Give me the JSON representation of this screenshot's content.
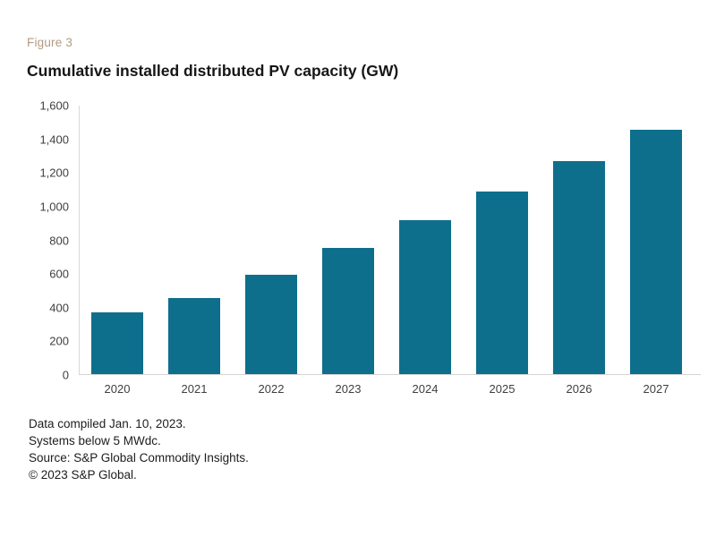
{
  "figure_label": "Figure 3",
  "chart_data": {
    "type": "bar",
    "title": "Cumulative installed distributed PV capacity (GW)",
    "categories": [
      "2020",
      "2021",
      "2022",
      "2023",
      "2024",
      "2025",
      "2026",
      "2027"
    ],
    "values": [
      365,
      450,
      590,
      750,
      915,
      1085,
      1265,
      1450
    ],
    "xlabel": "",
    "ylabel": "",
    "ylim": [
      0,
      1600
    ],
    "ytick_step": 200,
    "grid": false,
    "legend": false,
    "bar_color": "#0e6f8c",
    "units": "GW"
  },
  "colors": {
    "figure_label_text": "#b29b84",
    "title_text": "#161616",
    "axis_tick_text": "#3f3f3f",
    "axis_line": "#d9d9d9",
    "bar": "#0e6f8c"
  },
  "footnotes": [
    "Data compiled Jan. 10, 2023.",
    "Systems below 5 MWdc.",
    "Source: S&P Global Commodity Insights.",
    "© 2023 S&P Global."
  ]
}
